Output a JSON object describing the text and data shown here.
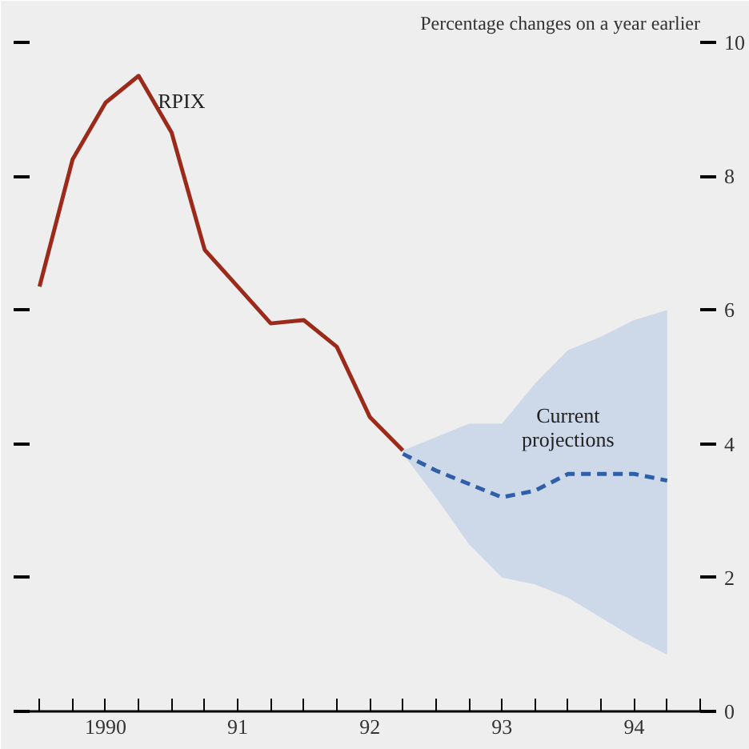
{
  "chart_data": {
    "type": "line",
    "ylabel": "Percentage changes on a year earlier",
    "categories": [
      null,
      null,
      "1990",
      null,
      null,
      null,
      "91",
      null,
      null,
      null,
      "92",
      null,
      null,
      null,
      "93",
      null,
      null,
      null,
      "94",
      null
    ],
    "ylim": [
      0,
      10
    ],
    "yticks": [
      0,
      2,
      4,
      6,
      8,
      10
    ],
    "grid": false,
    "series": [
      {
        "name": "RPIX",
        "color": "#9b2a1a",
        "line_style": "solid",
        "values": [
          6.35,
          8.25,
          9.1,
          9.5,
          8.65,
          6.9,
          6.35,
          5.8,
          5.85,
          5.45,
          4.4,
          3.9,
          null,
          null,
          null,
          null,
          null,
          null,
          null,
          null
        ]
      },
      {
        "name": "Current\nprojections",
        "color": "#2e5fa8",
        "line_style": "dashed",
        "values": [
          null,
          null,
          null,
          null,
          null,
          null,
          null,
          null,
          null,
          null,
          null,
          3.85,
          3.6,
          3.4,
          3.2,
          3.3,
          3.55,
          3.55,
          3.55,
          3.45
        ],
        "lower": [
          null,
          null,
          null,
          null,
          null,
          null,
          null,
          null,
          null,
          null,
          null,
          3.85,
          3.2,
          2.5,
          2.0,
          1.9,
          1.7,
          1.4,
          1.1,
          0.85
        ],
        "upper": [
          null,
          null,
          null,
          null,
          null,
          null,
          null,
          null,
          null,
          null,
          null,
          3.9,
          4.1,
          4.3,
          4.3,
          4.9,
          5.4,
          5.6,
          5.85,
          6.0
        ]
      }
    ]
  }
}
